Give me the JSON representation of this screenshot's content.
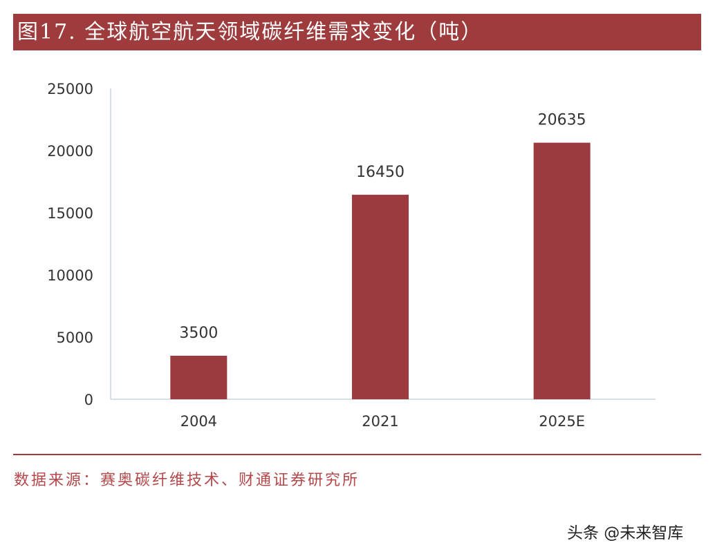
{
  "title": "图17. 全球航空航天领域碳纤维需求变化（吨）",
  "source": "数据来源：赛奥碳纤维技术、财通证券研究所",
  "watermark": "头条 @未来智库",
  "colors": {
    "bar": "#9b3a3f",
    "title_bg": "#9e3b3c",
    "source_text": "#b5474a"
  },
  "chart_data": {
    "type": "bar",
    "title": "图17. 全球航空航天领域碳纤维需求变化（吨）",
    "categories": [
      "2004",
      "2021",
      "2025E"
    ],
    "values": [
      3500,
      16450,
      20635
    ],
    "data_labels": [
      "3500",
      "16450",
      "20635"
    ],
    "yticks": [
      "0",
      "5000",
      "10000",
      "15000",
      "20000",
      "25000"
    ],
    "ylim": [
      0,
      25000
    ],
    "grid": false,
    "legend": "none"
  }
}
